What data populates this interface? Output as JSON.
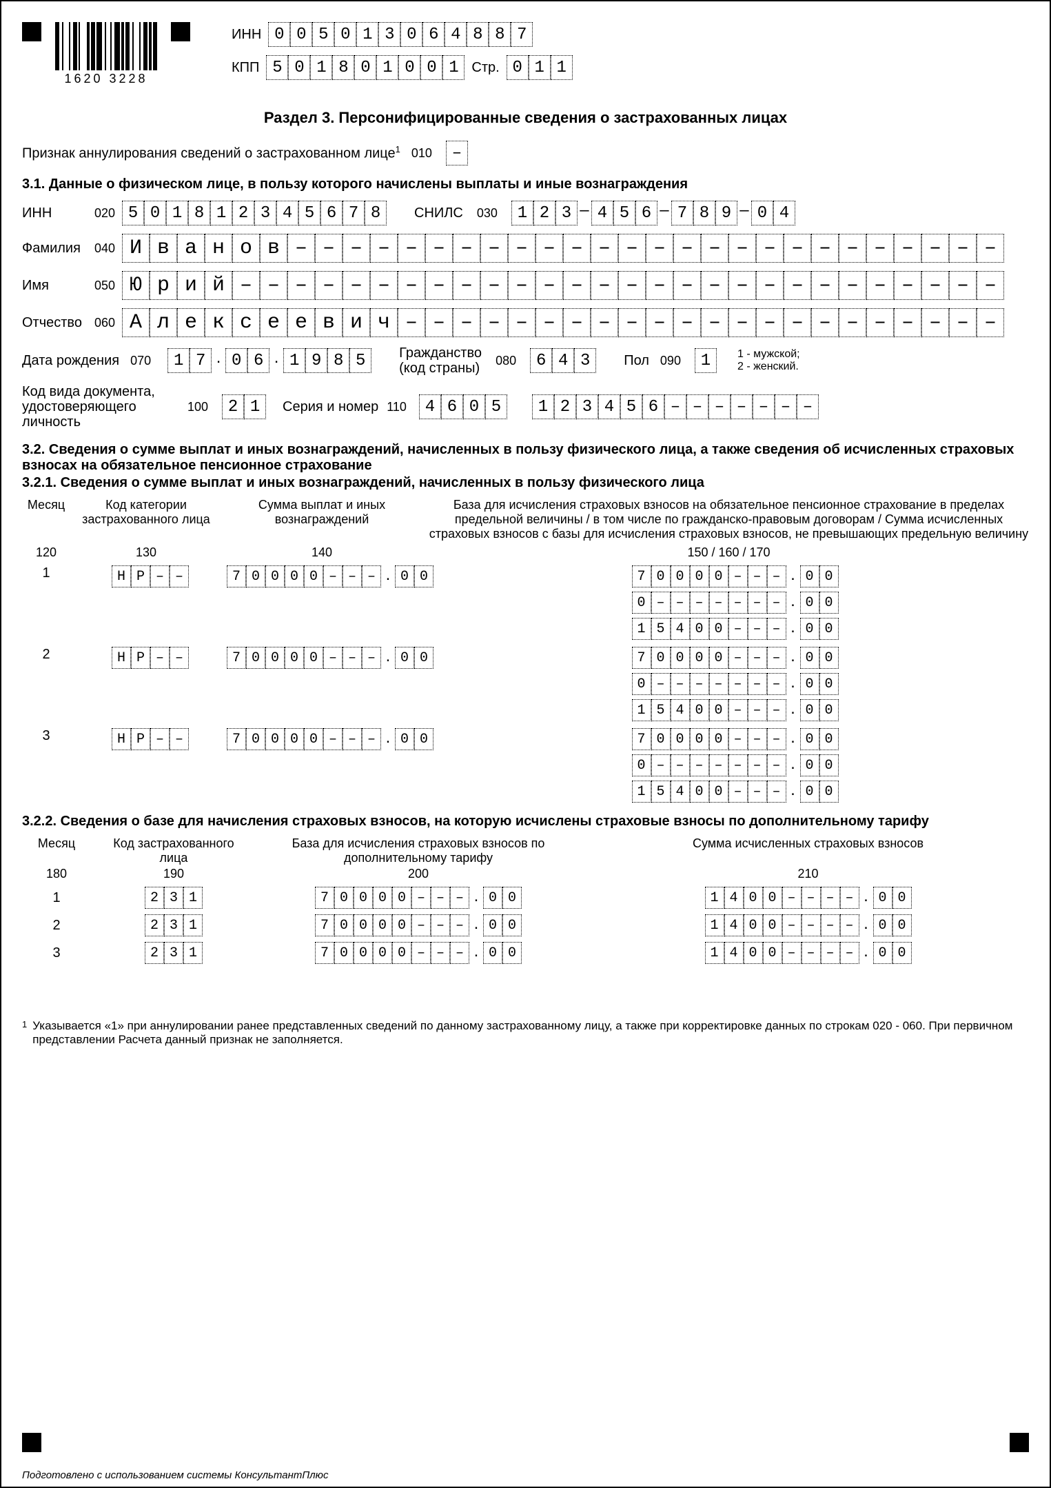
{
  "header": {
    "barcode_number": "1620  3228",
    "inn_label": "ИНН",
    "inn": "005013064887",
    "kpp_label": "КПП",
    "kpp": "501801001",
    "page_label": "Стр.",
    "page": "011"
  },
  "section_title": "Раздел 3. Персонифицированные сведения о застрахованных лицах",
  "cancel": {
    "label": "Признак аннулирования сведений о застрахованном лице",
    "code": "010",
    "value": ""
  },
  "s31_title": "3.1. Данные о физическом лице, в пользу которого начислены выплаты и иные вознаграждения",
  "person": {
    "inn_label": "ИНН",
    "inn_code": "020",
    "inn": "501812345678",
    "snils_label": "СНИЛС",
    "snils_code": "030",
    "snils": "123-456-789-04",
    "surname_label": "Фамилия",
    "surname_code": "040",
    "surname": "Иванов",
    "name_label": "Имя",
    "name_code": "050",
    "name": "Юрий",
    "patronymic_label": "Отчество",
    "patronymic_code": "060",
    "patronymic": "Алексеевич",
    "dob_label": "Дата рождения",
    "dob_code": "070",
    "dob": "17.06.1985",
    "citizenship_label": "Гражданство (код страны)",
    "citizenship_code": "080",
    "citizenship": "643",
    "sex_label": "Пол",
    "sex_code": "090",
    "sex": "1",
    "sex_note": "1 - мужской;\n2 - женский.",
    "doc_label": "Код вида документа, удостоверяющего личность",
    "doc_code": "100",
    "doc": "21",
    "serial_label": "Серия и номер",
    "serial_code": "110",
    "serial_a": "4605",
    "serial_b": "123456"
  },
  "s32_title": "3.2. Сведения о сумме выплат и иных вознаграждений, начисленных в пользу физического лица, а также сведения об исчисленных страховых взносах на обязательное пенсионное страхование",
  "s321_title": "3.2.1. Сведения о сумме выплат и иных вознаграждений, начисленных в пользу физического лица",
  "hdr321": {
    "c1": "Месяц",
    "c2": "Код категории застрахованного лица",
    "c3": "Сумма выплат и иных вознаграждений",
    "c4": "База для исчисления страховых взносов на обязательное пенсионное страхование в пределах предельной величины / в том числе по гражданско-правовым договорам / Сумма исчисленных страховых взносов с базы для исчисления страховых взносов, не превышающих предельную величину",
    "n1": "120",
    "n2": "130",
    "n3": "140",
    "n4": "150 / 160 / 170"
  },
  "rows321": [
    {
      "m": "1",
      "cat": "НР",
      "sum_int": "70000",
      "sum_dec": "00",
      "base_int": "70000",
      "base_dec": "00",
      "civ_int": "0",
      "civ_dec": "00",
      "calc_int": "15400",
      "calc_dec": "00"
    },
    {
      "m": "2",
      "cat": "НР",
      "sum_int": "70000",
      "sum_dec": "00",
      "base_int": "70000",
      "base_dec": "00",
      "civ_int": "0",
      "civ_dec": "00",
      "calc_int": "15400",
      "calc_dec": "00"
    },
    {
      "m": "3",
      "cat": "НР",
      "sum_int": "70000",
      "sum_dec": "00",
      "base_int": "70000",
      "base_dec": "00",
      "civ_int": "0",
      "civ_dec": "00",
      "calc_int": "15400",
      "calc_dec": "00"
    }
  ],
  "s322_title": "3.2.2. Сведения о базе для начисления страховых взносов, на которую исчислены страховые взносы по дополнительному тарифу",
  "hdr322": {
    "c1": "Месяц",
    "c2": "Код застрахованного лица",
    "c3": "База для исчисления страховых взносов по дополнительному тарифу",
    "c4": "Сумма исчисленных страховых взносов",
    "n1": "180",
    "n2": "190",
    "n3": "200",
    "n4": "210"
  },
  "rows322": [
    {
      "m": "1",
      "code": "231",
      "base_int": "70000",
      "base_dec": "00",
      "sum_int": "1400",
      "sum_dec": "00"
    },
    {
      "m": "2",
      "code": "231",
      "base_int": "70000",
      "base_dec": "00",
      "sum_int": "1400",
      "sum_dec": "00"
    },
    {
      "m": "3",
      "code": "231",
      "base_int": "70000",
      "base_dec": "00",
      "sum_int": "1400",
      "sum_dec": "00"
    }
  ],
  "footnote": "Указывается «1» при аннулировании ранее представленных сведений по данному застрахованному лицу, а также при корректировке данных по строкам 020 - 060. При первичном представлении Расчета данный признак не заполняется.",
  "credit": "Подготовлено с использованием системы КонсультантПлюс",
  "cellstyle": {
    "dash": "–"
  }
}
